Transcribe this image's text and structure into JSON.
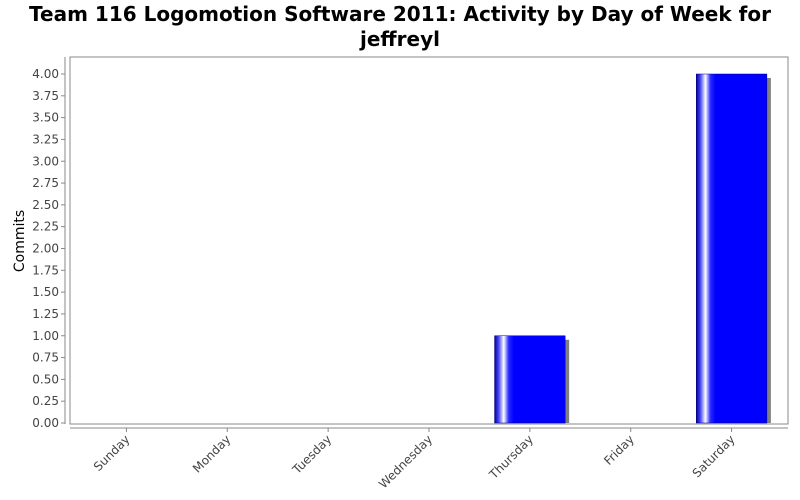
{
  "chart_data": {
    "type": "bar",
    "title": "Team 116 Logomotion Software 2011: Activity by Day of Week for jeffreyl",
    "xlabel": "",
    "ylabel": "Commits",
    "categories": [
      "Sunday",
      "Monday",
      "Tuesday",
      "Wednesday",
      "Thursday",
      "Friday",
      "Saturday"
    ],
    "values": [
      0,
      0,
      0,
      0,
      1,
      0,
      4
    ],
    "ylim": [
      0,
      4.0
    ],
    "yticks": [
      "0.00",
      "0.25",
      "0.50",
      "0.75",
      "1.00",
      "1.25",
      "1.50",
      "1.75",
      "2.00",
      "2.25",
      "2.50",
      "2.75",
      "3.00",
      "3.25",
      "3.50",
      "3.75",
      "4.00"
    ],
    "grid": false,
    "colors": {
      "bar": "#0000ff",
      "shadow": "#808080"
    }
  }
}
